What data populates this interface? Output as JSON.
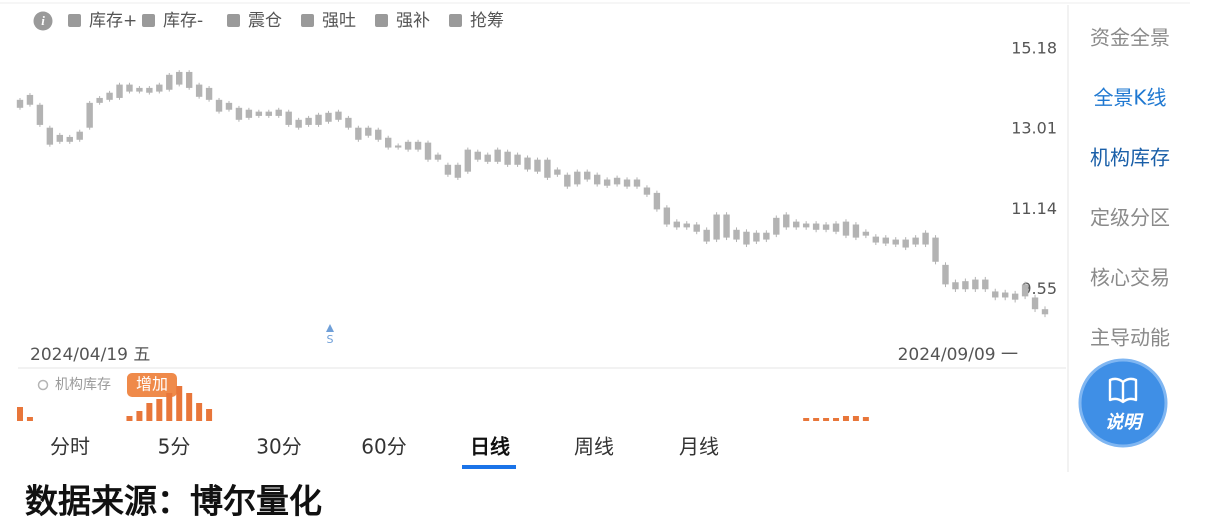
{
  "app": {
    "legend": [
      {
        "label": "库存+",
        "color": "#9a9a9a"
      },
      {
        "label": "库存-",
        "color": "#9a9a9a"
      },
      {
        "label": "震仓",
        "color": "#9a9a9a"
      },
      {
        "label": "强吐",
        "color": "#9a9a9a"
      },
      {
        "label": "强补",
        "color": "#9a9a9a"
      },
      {
        "label": "抢筹",
        "color": "#9a9a9a"
      }
    ],
    "sidebar": [
      {
        "label": "资金全景",
        "color": "#8a8a8a"
      },
      {
        "label": "全景K线",
        "color": "#1f78d1"
      },
      {
        "label": "机构库存",
        "color": "#1a5fa8"
      },
      {
        "label": "定级分区",
        "color": "#8a8a8a"
      },
      {
        "label": "核心交易",
        "color": "#8a8a8a"
      },
      {
        "label": "主导动能",
        "color": "#8a8a8a"
      }
    ],
    "help_button": "说明",
    "tabs": [
      {
        "label": "分时",
        "selected": false
      },
      {
        "label": "5分",
        "selected": false
      },
      {
        "label": "30分",
        "selected": false
      },
      {
        "label": "60分",
        "selected": false
      },
      {
        "label": "日线",
        "selected": true
      },
      {
        "label": "周线",
        "selected": false
      },
      {
        "label": "月线",
        "selected": false
      }
    ],
    "footer": "数据来源：博尔量化"
  },
  "chart_data": [
    {
      "type": "candlestick",
      "color": "#b3b3b3",
      "log_scale": true,
      "grid": false,
      "annotation": "S",
      "categories": [
        "2024/04/19 五",
        null,
        null,
        null,
        null,
        null,
        null,
        null,
        null,
        null,
        null,
        null,
        null,
        null,
        null,
        null,
        null,
        null,
        null,
        null,
        null,
        null,
        null,
        null,
        null,
        null,
        null,
        null,
        null,
        null,
        null,
        null,
        null,
        null,
        null,
        null,
        null,
        null,
        null,
        null,
        null,
        null,
        null,
        null,
        null,
        null,
        null,
        null,
        null,
        null,
        null,
        null,
        null,
        null,
        null,
        null,
        null,
        null,
        null,
        null,
        null,
        null,
        null,
        null,
        null,
        null,
        null,
        null,
        null,
        null,
        null,
        null,
        null,
        null,
        null,
        null,
        null,
        null,
        null,
        null,
        null,
        null,
        null,
        null,
        null,
        null,
        null,
        null,
        null,
        null,
        null,
        null,
        null,
        null,
        null,
        null,
        null,
        null,
        null,
        null,
        null,
        null,
        null,
        "2024/09/09 一"
      ],
      "open": [
        13.76,
        13.89,
        13.63,
        13.04,
        12.86,
        12.81,
        12.94,
        13.04,
        13.68,
        13.76,
        13.81,
        14.17,
        14.08,
        14.08,
        13.98,
        14.03,
        14.17,
        14.52,
        14.17,
        14.08,
        13.76,
        13.68,
        13.55,
        13.5,
        13.45,
        13.45,
        13.5,
        13.45,
        13.24,
        13.29,
        13.37,
        13.42,
        13.45,
        13.29,
        13.04,
        13.04,
        12.99,
        12.79,
        12.6,
        12.69,
        12.69,
        12.67,
        12.38,
        12.14,
        12.14,
        11.98,
        12.45,
        12.38,
        12.5,
        12.45,
        12.38,
        12.31,
        12.26,
        12.26,
        12.03,
        11.91,
        11.98,
        11.98,
        11.91,
        11.8,
        11.84,
        11.8,
        11.8,
        11.62,
        11.5,
        11.18,
        10.88,
        10.84,
        10.82,
        10.71,
        10.51,
        11.03,
        10.71,
        10.67,
        10.65,
        10.65,
        10.61,
        10.76,
        10.88,
        10.84,
        10.84,
        10.82,
        10.84,
        10.88,
        10.82,
        10.67,
        10.57,
        10.55,
        10.51,
        10.51,
        10.55,
        10.65,
        10.55,
        10.01,
        9.68,
        9.7,
        9.73,
        9.73,
        9.51,
        9.49,
        9.47,
        9.42,
        9.4,
        9.19
      ],
      "close": [
        13.55,
        13.63,
        13.11,
        12.62,
        12.69,
        12.69,
        12.74,
        13.68,
        13.81,
        13.95,
        14.17,
        13.98,
        13.98,
        13.95,
        14.17,
        14.44,
        14.52,
        14.08,
        13.84,
        13.76,
        13.45,
        13.5,
        13.24,
        13.29,
        13.34,
        13.34,
        13.34,
        13.11,
        13.04,
        13.11,
        13.11,
        13.19,
        13.24,
        13.04,
        12.74,
        12.84,
        12.74,
        12.55,
        12.55,
        12.5,
        12.5,
        12.26,
        12.26,
        11.91,
        11.84,
        12.5,
        12.26,
        12.21,
        12.21,
        12.14,
        12.14,
        12.03,
        11.98,
        11.84,
        11.91,
        11.64,
        11.69,
        11.8,
        11.69,
        11.66,
        11.69,
        11.64,
        11.64,
        11.46,
        11.14,
        10.82,
        10.76,
        10.76,
        10.67,
        10.47,
        11.03,
        10.55,
        10.51,
        10.41,
        10.47,
        10.51,
        10.96,
        11.03,
        10.76,
        10.76,
        10.71,
        10.71,
        10.67,
        10.59,
        10.55,
        10.59,
        10.45,
        10.43,
        10.41,
        10.35,
        10.41,
        10.41,
        10.07,
        9.64,
        9.55,
        9.55,
        9.55,
        9.55,
        9.4,
        9.4,
        9.36,
        9.64,
        9.19,
        9.1
      ],
      "high": [
        13.81,
        13.94,
        13.68,
        13.09,
        12.91,
        12.86,
        12.99,
        13.73,
        13.86,
        14.0,
        14.22,
        14.22,
        14.13,
        14.13,
        14.22,
        14.49,
        14.57,
        14.57,
        14.22,
        14.13,
        13.81,
        13.73,
        13.6,
        13.55,
        13.5,
        13.5,
        13.55,
        13.5,
        13.29,
        13.34,
        13.42,
        13.47,
        13.5,
        13.34,
        13.09,
        13.09,
        13.04,
        12.84,
        12.65,
        12.74,
        12.74,
        12.72,
        12.43,
        12.19,
        12.19,
        12.55,
        12.5,
        12.43,
        12.55,
        12.5,
        12.43,
        12.36,
        12.31,
        12.31,
        12.08,
        11.96,
        12.03,
        12.03,
        11.96,
        11.85,
        11.89,
        11.85,
        11.85,
        11.67,
        11.55,
        11.23,
        10.93,
        10.89,
        10.87,
        10.76,
        11.08,
        11.08,
        10.76,
        10.72,
        10.7,
        10.7,
        11.01,
        11.08,
        10.93,
        10.89,
        10.89,
        10.87,
        10.89,
        10.93,
        10.87,
        10.72,
        10.62,
        10.6,
        10.56,
        10.56,
        10.6,
        10.7,
        10.6,
        10.06,
        9.73,
        9.75,
        9.78,
        9.78,
        9.56,
        9.54,
        9.52,
        9.69,
        9.45,
        9.24
      ],
      "low": [
        13.5,
        13.58,
        13.06,
        12.57,
        12.64,
        12.64,
        12.69,
        12.99,
        13.63,
        13.71,
        13.76,
        13.93,
        13.93,
        13.9,
        13.93,
        13.98,
        14.12,
        14.03,
        13.79,
        13.71,
        13.4,
        13.45,
        13.19,
        13.24,
        13.29,
        13.29,
        13.29,
        13.06,
        12.99,
        13.06,
        13.06,
        13.14,
        13.19,
        12.99,
        12.69,
        12.79,
        12.69,
        12.5,
        12.5,
        12.45,
        12.45,
        12.21,
        12.21,
        11.86,
        11.79,
        11.93,
        12.21,
        12.16,
        12.16,
        12.09,
        12.09,
        11.98,
        11.93,
        11.79,
        11.86,
        11.59,
        11.64,
        11.75,
        11.64,
        11.61,
        11.64,
        11.59,
        11.59,
        11.41,
        11.09,
        10.77,
        10.71,
        10.71,
        10.62,
        10.42,
        10.46,
        10.5,
        10.46,
        10.36,
        10.42,
        10.46,
        10.56,
        10.71,
        10.71,
        10.71,
        10.66,
        10.66,
        10.62,
        10.54,
        10.5,
        10.54,
        10.4,
        10.38,
        10.36,
        10.3,
        10.36,
        10.36,
        10.02,
        9.59,
        9.5,
        9.5,
        9.5,
        9.5,
        9.35,
        9.35,
        9.31,
        9.37,
        9.14,
        9.05
      ],
      "ylim": [
        8.66,
        16.52
      ],
      "yticks": [
        15.18,
        13.01,
        11.14,
        9.55
      ]
    },
    {
      "type": "bar",
      "title": "机构库存",
      "annotation": "增加",
      "color": "#e8763a",
      "values": [
        14,
        4,
        null,
        null,
        null,
        null,
        null,
        null,
        null,
        null,
        null,
        5,
        10,
        18,
        22,
        28,
        35,
        28,
        18,
        12,
        null,
        null,
        null,
        null,
        null,
        null,
        null,
        null,
        null,
        null,
        null,
        null,
        null,
        null,
        null,
        null,
        null,
        null,
        null,
        null,
        null,
        null,
        null,
        null,
        null,
        null,
        null,
        null,
        null,
        null,
        null,
        null,
        null,
        null,
        null,
        null,
        null,
        null,
        null,
        null,
        null,
        null,
        null,
        null,
        null,
        null,
        null,
        null,
        null,
        null,
        null,
        null,
        null,
        null,
        null,
        null,
        null,
        null,
        null,
        3,
        3,
        3,
        3,
        5,
        5,
        4,
        null,
        null,
        null,
        null,
        null,
        null,
        null,
        null,
        null,
        null,
        null,
        null,
        null,
        null,
        null,
        null,
        null,
        null
      ]
    }
  ]
}
